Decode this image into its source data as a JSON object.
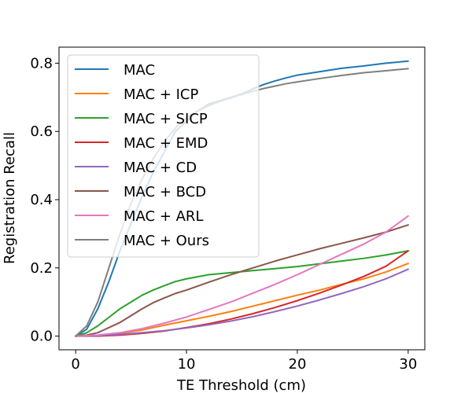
{
  "chart_data": {
    "type": "line",
    "title": "",
    "xlabel": "TE Threshold (cm)",
    "ylabel": "Registration Recall",
    "xlim": [
      -1.5,
      31.5
    ],
    "ylim": [
      -0.04,
      0.847
    ],
    "xticks": [
      0,
      10,
      20,
      30
    ],
    "yticks": [
      0.0,
      0.2,
      0.4,
      0.6,
      0.8
    ],
    "xtick_labels": [
      "0",
      "10",
      "20",
      "30"
    ],
    "ytick_labels": [
      "0.0",
      "0.2",
      "0.4",
      "0.6",
      "0.8"
    ],
    "grid": false,
    "legend_position": "upper-left",
    "series": [
      {
        "name": "MAC",
        "color": "#1f77b4",
        "x": [
          0,
          1,
          2,
          3,
          4,
          5,
          6,
          7,
          8,
          9,
          10,
          11,
          12,
          13,
          14,
          15,
          16,
          17,
          18,
          19,
          20,
          22,
          24,
          26,
          28,
          30
        ],
        "y": [
          0.0,
          0.02,
          0.08,
          0.16,
          0.25,
          0.33,
          0.41,
          0.48,
          0.54,
          0.6,
          0.63,
          0.66,
          0.68,
          0.69,
          0.7,
          0.71,
          0.725,
          0.738,
          0.748,
          0.757,
          0.765,
          0.775,
          0.785,
          0.792,
          0.8,
          0.806
        ]
      },
      {
        "name": "MAC + ICP",
        "color": "#ff7f0e",
        "x": [
          0,
          2,
          4,
          6,
          8,
          10,
          12,
          14,
          16,
          18,
          20,
          22,
          24,
          26,
          28,
          30
        ],
        "y": [
          0.0,
          0.002,
          0.008,
          0.018,
          0.032,
          0.045,
          0.058,
          0.072,
          0.088,
          0.104,
          0.12,
          0.135,
          0.152,
          0.168,
          0.188,
          0.213
        ]
      },
      {
        "name": "MAC + SICP",
        "color": "#2ca02c",
        "x": [
          0,
          1,
          2,
          3,
          4,
          5,
          6,
          7,
          8,
          9,
          10,
          11,
          12,
          14,
          16,
          18,
          20,
          22,
          24,
          26,
          28,
          30
        ],
        "y": [
          0.0,
          0.01,
          0.03,
          0.055,
          0.08,
          0.1,
          0.12,
          0.135,
          0.148,
          0.16,
          0.168,
          0.174,
          0.18,
          0.186,
          0.192,
          0.198,
          0.204,
          0.212,
          0.22,
          0.228,
          0.238,
          0.25
        ]
      },
      {
        "name": "MAC + EMD",
        "color": "#d62728",
        "x": [
          0,
          2,
          4,
          6,
          8,
          10,
          12,
          14,
          16,
          18,
          20,
          22,
          24,
          26,
          28,
          30
        ],
        "y": [
          0.0,
          0.0,
          0.003,
          0.008,
          0.015,
          0.025,
          0.036,
          0.05,
          0.066,
          0.084,
          0.104,
          0.126,
          0.15,
          0.175,
          0.205,
          0.25
        ]
      },
      {
        "name": "MAC + CD",
        "color": "#9467bd",
        "x": [
          0,
          2,
          4,
          6,
          8,
          10,
          12,
          14,
          16,
          18,
          20,
          22,
          24,
          26,
          28,
          30
        ],
        "y": [
          0.0,
          0.001,
          0.005,
          0.01,
          0.016,
          0.024,
          0.033,
          0.044,
          0.057,
          0.072,
          0.088,
          0.106,
          0.125,
          0.145,
          0.168,
          0.196
        ]
      },
      {
        "name": "MAC + BCD",
        "color": "#8c564b",
        "x": [
          0,
          1,
          2,
          3,
          4,
          5,
          6,
          7,
          8,
          9,
          10,
          12,
          14,
          16,
          18,
          20,
          22,
          24,
          26,
          28,
          30
        ],
        "y": [
          0.0,
          0.003,
          0.01,
          0.025,
          0.04,
          0.06,
          0.08,
          0.098,
          0.112,
          0.125,
          0.135,
          0.158,
          0.18,
          0.2,
          0.22,
          0.238,
          0.256,
          0.272,
          0.288,
          0.305,
          0.326
        ]
      },
      {
        "name": "MAC + ARL",
        "color": "#e377c2",
        "x": [
          0,
          2,
          4,
          6,
          8,
          10,
          12,
          14,
          16,
          18,
          20,
          22,
          24,
          26,
          28,
          30
        ],
        "y": [
          0.0,
          0.003,
          0.01,
          0.022,
          0.038,
          0.056,
          0.078,
          0.1,
          0.126,
          0.152,
          0.18,
          0.21,
          0.24,
          0.27,
          0.305,
          0.352
        ]
      },
      {
        "name": "MAC + Ours",
        "color": "#7f7f7f",
        "x": [
          0,
          1,
          2,
          3,
          4,
          5,
          6,
          7,
          8,
          9,
          10,
          11,
          12,
          13,
          14,
          15,
          16,
          17,
          18,
          19,
          20,
          22,
          24,
          26,
          28,
          30
        ],
        "y": [
          0.0,
          0.03,
          0.1,
          0.2,
          0.3,
          0.39,
          0.46,
          0.52,
          0.57,
          0.61,
          0.64,
          0.66,
          0.675,
          0.688,
          0.698,
          0.708,
          0.718,
          0.726,
          0.733,
          0.74,
          0.745,
          0.755,
          0.764,
          0.772,
          0.778,
          0.784
        ]
      }
    ]
  }
}
